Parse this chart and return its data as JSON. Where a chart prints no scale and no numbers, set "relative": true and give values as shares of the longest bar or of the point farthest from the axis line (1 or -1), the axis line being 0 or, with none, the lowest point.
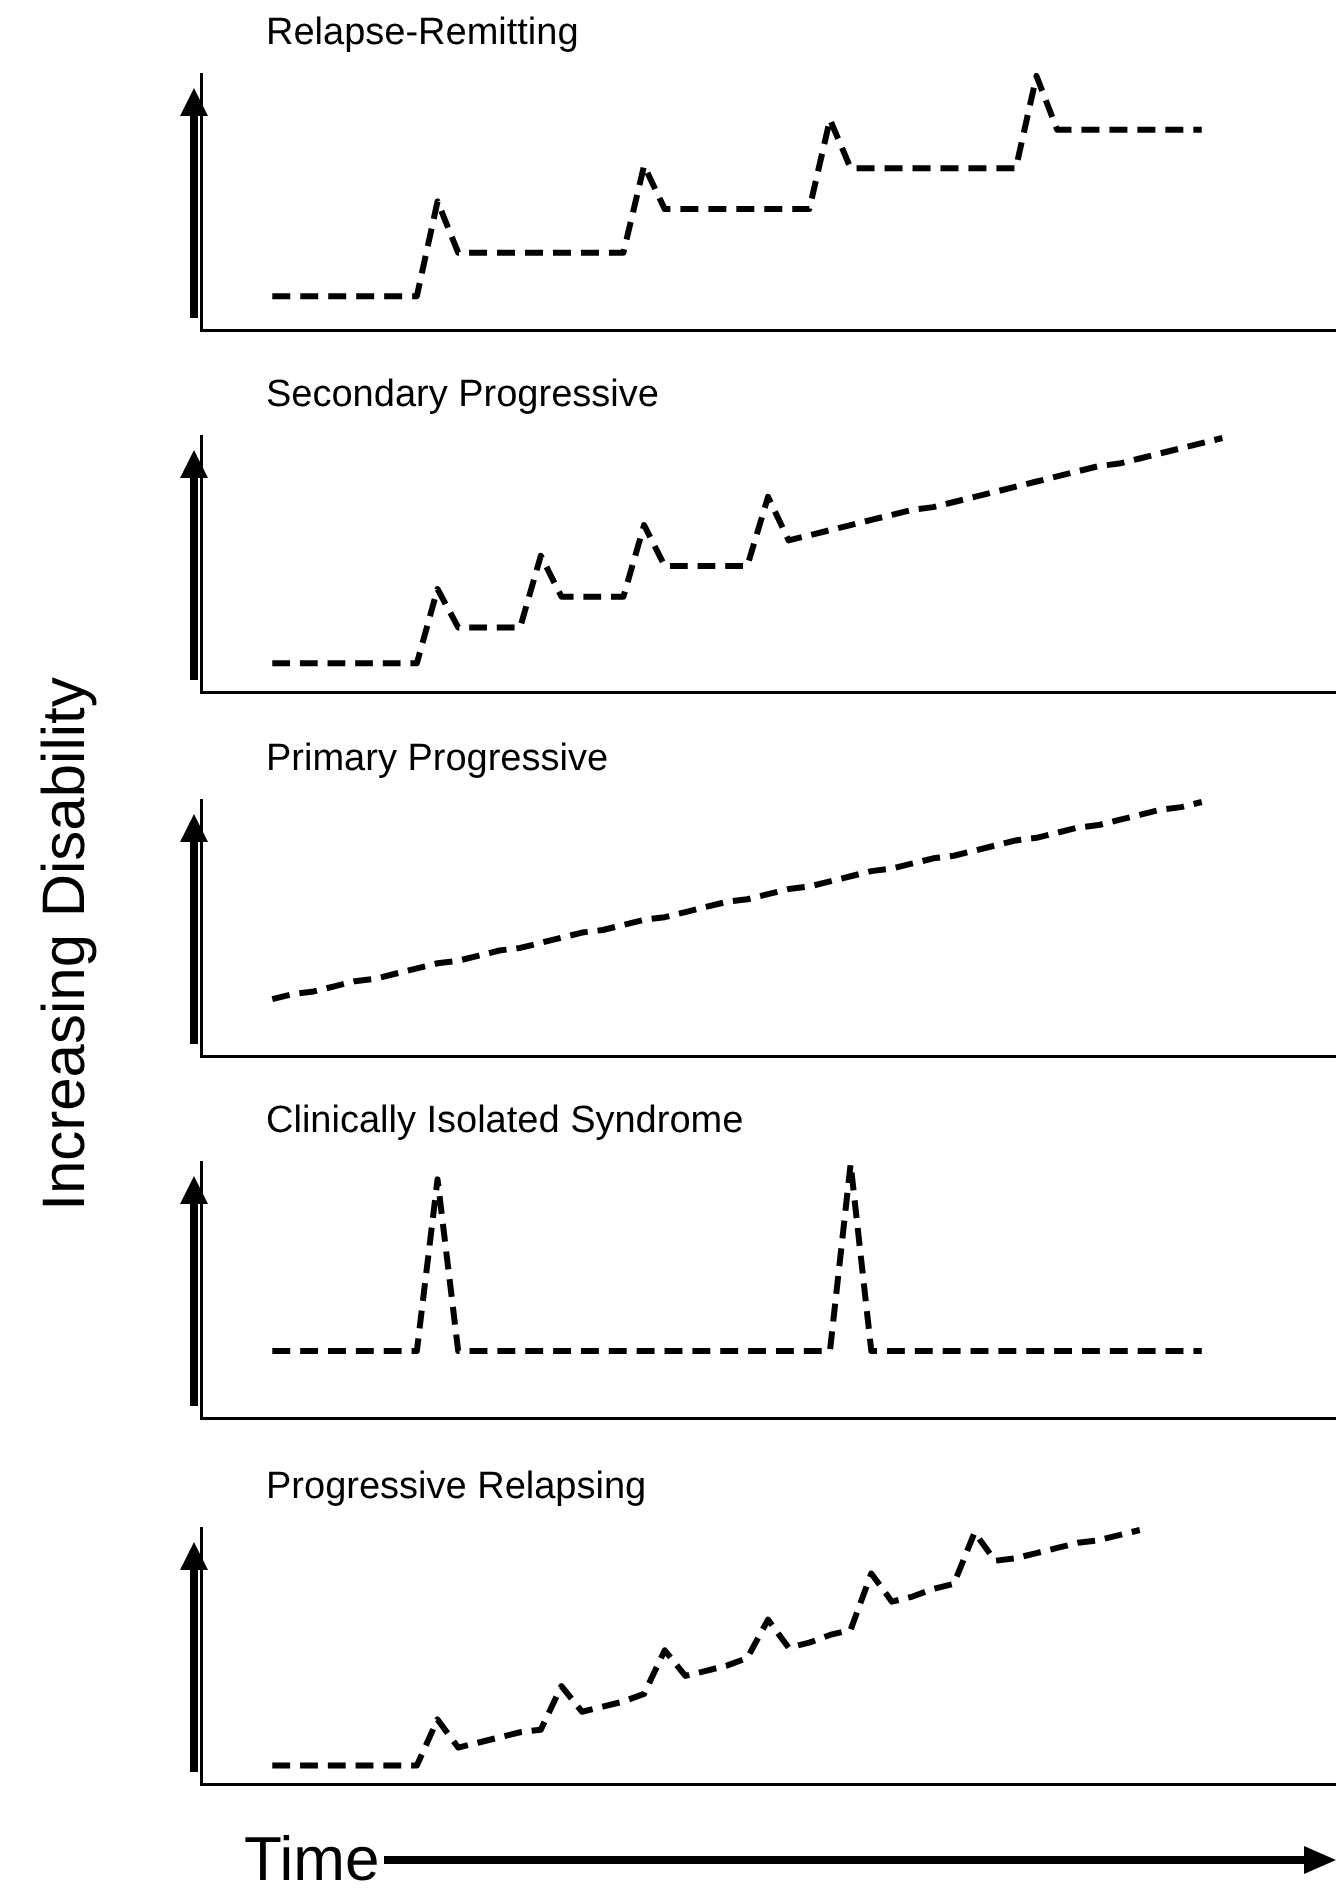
{
  "chart_data": [
    {
      "type": "line",
      "title": "Relapse-Remitting",
      "relative": true,
      "tick_labels": false,
      "line_style": "dashed",
      "marker": "none",
      "categories": [
        null,
        null,
        null,
        null,
        null,
        null,
        null,
        null,
        null,
        null,
        null,
        null,
        null,
        null,
        null,
        null,
        null,
        null,
        null,
        null,
        null,
        null,
        null,
        null,
        null,
        null,
        null,
        null,
        null,
        null,
        null,
        null,
        null,
        null,
        null,
        null,
        null,
        null,
        null,
        null,
        null,
        null,
        null,
        null,
        null,
        null,
        null,
        null,
        null,
        null,
        null,
        null,
        null,
        null,
        null
      ],
      "series": [
        {
          "color": "#000000",
          "values": [
            null,
            null,
            null,
            0.14,
            0.14,
            0.14,
            0.14,
            0.14,
            0.14,
            0.14,
            0.14,
            0.51,
            0.31,
            0.31,
            0.31,
            0.31,
            0.31,
            0.31,
            0.31,
            0.31,
            0.31,
            0.65,
            0.48,
            0.48,
            0.48,
            0.48,
            0.48,
            0.48,
            0.48,
            0.48,
            0.83,
            0.64,
            0.64,
            0.64,
            0.64,
            0.64,
            0.64,
            0.64,
            0.64,
            0.64,
            1,
            0.79,
            0.79,
            0.79,
            0.79,
            0.79,
            0.79,
            0.79,
            0.79,
            null,
            null,
            null,
            null,
            null,
            null
          ]
        }
      ]
    },
    {
      "type": "line",
      "title": "Secondary Progressive",
      "relative": true,
      "tick_labels": false,
      "line_style": "dashed",
      "marker": "none",
      "categories": [
        null,
        null,
        null,
        null,
        null,
        null,
        null,
        null,
        null,
        null,
        null,
        null,
        null,
        null,
        null,
        null,
        null,
        null,
        null,
        null,
        null,
        null,
        null,
        null,
        null,
        null,
        null,
        null,
        null,
        null,
        null,
        null,
        null,
        null,
        null,
        null,
        null,
        null,
        null,
        null,
        null,
        null,
        null,
        null,
        null,
        null,
        null,
        null,
        null,
        null,
        null,
        null,
        null,
        null,
        null
      ],
      "series": [
        {
          "color": "#000000",
          "values": [
            null,
            null,
            null,
            0.12,
            0.12,
            0.12,
            0.12,
            0.12,
            0.12,
            0.12,
            0.12,
            0.41,
            0.26,
            0.26,
            0.26,
            0.26,
            0.54,
            0.38,
            0.38,
            0.38,
            0.38,
            0.66,
            0.5,
            0.5,
            0.5,
            0.5,
            0.5,
            0.77,
            0.6,
            0.62,
            0.64,
            0.66,
            0.68,
            0.7,
            0.72,
            0.73,
            0.75,
            0.77,
            0.79,
            0.81,
            0.83,
            0.85,
            0.87,
            0.89,
            0.9,
            0.92,
            0.94,
            0.96,
            0.98,
            1,
            null,
            null,
            null,
            null,
            null
          ]
        }
      ]
    },
    {
      "type": "line",
      "title": "Primary Progressive",
      "relative": true,
      "tick_labels": false,
      "line_style": "dashed",
      "marker": "none",
      "ylabel": "Increasing Disability",
      "categories": [
        null,
        null,
        null,
        null,
        null,
        null,
        null,
        null,
        null,
        null,
        null,
        null,
        null,
        null,
        null,
        null,
        null,
        null,
        null,
        null,
        null,
        null,
        null,
        null,
        null,
        null,
        null,
        null,
        null,
        null,
        null,
        null,
        null,
        null,
        null,
        null,
        null,
        null,
        null,
        null,
        null,
        null,
        null,
        null,
        null,
        null,
        null,
        null,
        null,
        null,
        null,
        null,
        null,
        null,
        null
      ],
      "series": [
        {
          "color": "#000000",
          "values": [
            null,
            null,
            null,
            0.23,
            0.25,
            0.26,
            0.28,
            0.3,
            0.31,
            0.33,
            0.35,
            0.37,
            0.38,
            0.4,
            0.42,
            0.43,
            0.45,
            0.47,
            0.49,
            0.5,
            0.52,
            0.54,
            0.55,
            0.57,
            0.59,
            0.61,
            0.62,
            0.64,
            0.66,
            0.67,
            0.69,
            0.71,
            0.73,
            0.74,
            0.76,
            0.78,
            0.79,
            0.81,
            0.83,
            0.85,
            0.86,
            0.88,
            0.9,
            0.91,
            0.93,
            0.95,
            0.97,
            0.98,
            1,
            null,
            null,
            null,
            null,
            null,
            null
          ]
        }
      ]
    },
    {
      "type": "line",
      "title": "Clinically Isolated Syndrome",
      "relative": true,
      "tick_labels": false,
      "line_style": "dashed",
      "marker": "none",
      "categories": [
        null,
        null,
        null,
        null,
        null,
        null,
        null,
        null,
        null,
        null,
        null,
        null,
        null,
        null,
        null,
        null,
        null,
        null,
        null,
        null,
        null,
        null,
        null,
        null,
        null,
        null,
        null,
        null,
        null,
        null,
        null,
        null,
        null,
        null,
        null,
        null,
        null,
        null,
        null,
        null,
        null,
        null,
        null,
        null,
        null,
        null,
        null,
        null,
        null,
        null,
        null,
        null,
        null,
        null,
        null
      ],
      "series": [
        {
          "color": "#000000",
          "values": [
            null,
            null,
            null,
            0.27,
            0.27,
            0.27,
            0.27,
            0.27,
            0.27,
            0.27,
            0.27,
            0.94,
            0.27,
            0.27,
            0.27,
            0.27,
            0.27,
            0.27,
            0.27,
            0.27,
            0.27,
            0.27,
            0.27,
            0.27,
            0.27,
            0.27,
            0.27,
            0.27,
            0.27,
            0.27,
            0.27,
            1,
            0.27,
            0.27,
            0.27,
            0.27,
            0.27,
            0.27,
            0.27,
            0.27,
            0.27,
            0.27,
            0.27,
            0.27,
            0.27,
            0.27,
            0.27,
            0.27,
            0.27,
            null,
            null,
            null,
            null,
            null,
            null
          ]
        }
      ]
    },
    {
      "type": "line",
      "title": "Progressive Relapsing",
      "relative": true,
      "tick_labels": false,
      "line_style": "dashed",
      "marker": "none",
      "xlabel": "Time",
      "categories": [
        null,
        null,
        null,
        null,
        null,
        null,
        null,
        null,
        null,
        null,
        null,
        null,
        null,
        null,
        null,
        null,
        null,
        null,
        null,
        null,
        null,
        null,
        null,
        null,
        null,
        null,
        null,
        null,
        null,
        null,
        null,
        null,
        null,
        null,
        null,
        null,
        null,
        null,
        null,
        null,
        null,
        null,
        null,
        null,
        null,
        null,
        null,
        null,
        null,
        null,
        null,
        null,
        null,
        null,
        null
      ],
      "series": [
        {
          "color": "#000000",
          "values": [
            null,
            null,
            null,
            0.08,
            0.08,
            0.08,
            0.08,
            0.08,
            0.08,
            0.08,
            0.08,
            0.26,
            0.15,
            0.17,
            0.19,
            0.21,
            0.22,
            0.39,
            0.29,
            0.31,
            0.33,
            0.36,
            0.53,
            0.43,
            0.45,
            0.47,
            0.5,
            0.65,
            0.54,
            0.56,
            0.59,
            0.61,
            0.83,
            0.72,
            0.74,
            0.77,
            0.79,
            0.99,
            0.88,
            0.89,
            0.91,
            0.93,
            0.95,
            0.96,
            0.98,
            1,
            null,
            null,
            null,
            null,
            null,
            null,
            null,
            null,
            null
          ]
        }
      ]
    }
  ]
}
